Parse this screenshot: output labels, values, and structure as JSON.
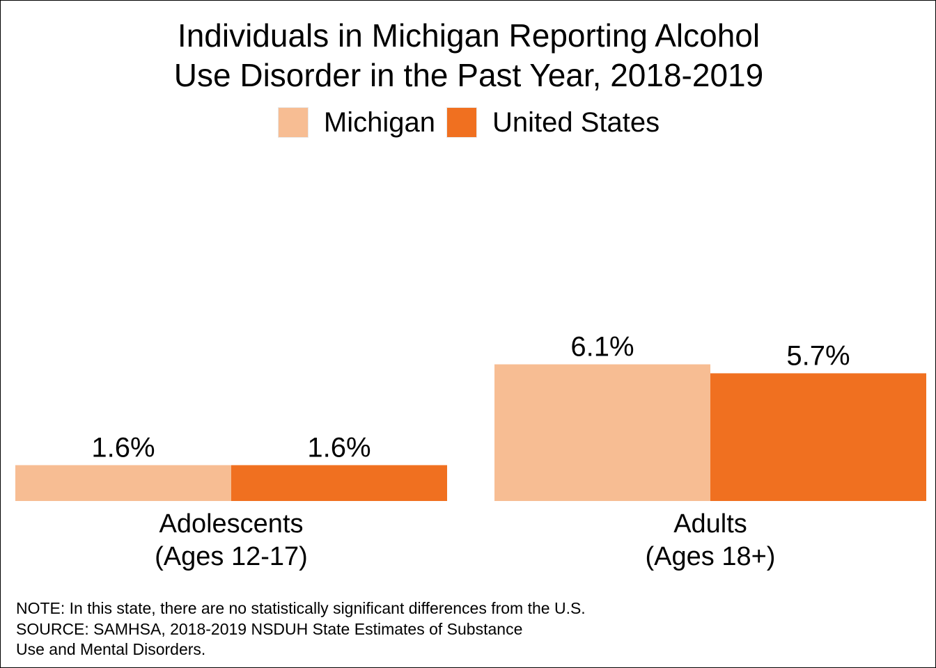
{
  "chart_data": {
    "type": "bar",
    "title": [
      "Individuals in Michigan Reporting Alcohol",
      "Use Disorder in the Past Year, 2018-2019"
    ],
    "categories": [
      [
        "Adolescents",
        "(Ages 12-17)"
      ],
      [
        "Adults",
        "(Ages 18+)"
      ]
    ],
    "series": [
      {
        "name": "Michigan",
        "values": [
          1.6,
          6.1
        ],
        "labels": [
          "1.6%",
          "6.1%"
        ],
        "color": "#f7bd93"
      },
      {
        "name": "United States",
        "values": [
          1.6,
          5.7
        ],
        "labels": [
          "1.6%",
          "5.7%"
        ],
        "color": "#f07020"
      }
    ],
    "ylim": [
      0,
      12
    ],
    "grid": false,
    "legend_position": "top"
  },
  "notes": [
    "NOTE: In this state, there are no statistically significant differences from the U.S.",
    "SOURCE: SAMHSA, 2018-2019 NSDUH State Estimates of Substance",
    "Use and Mental Disorders."
  ]
}
